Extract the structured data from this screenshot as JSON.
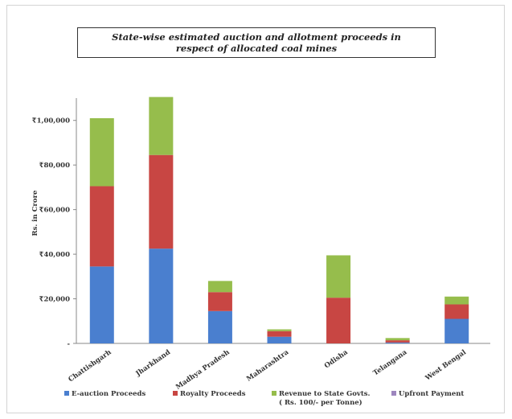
{
  "chart_data": {
    "type": "bar",
    "stacked": true,
    "title_line1": "State-wise estimated auction and allotment proceeds in",
    "title_line2": "respect of allocated coal mines",
    "ylabel": "Rs. in Crore",
    "ylim": [
      0,
      110000
    ],
    "yticks": [
      0,
      20000,
      40000,
      60000,
      80000,
      100000
    ],
    "ytick_labels": [
      "-",
      "₹20,000",
      "₹40,000",
      "₹60,000",
      "₹80,000",
      "₹1,00,000"
    ],
    "categories": [
      "Chattishgarh",
      "Jharkhand",
      "Madhya Pradesh",
      "Maharashtra",
      "Odisha",
      "Telangana",
      "West Bengal"
    ],
    "series": [
      {
        "name": "E-auction Proceeds",
        "color": "#4a7fcf",
        "values": [
          34500,
          42500,
          14500,
          3000,
          0,
          400,
          11000
        ]
      },
      {
        "name": "Royalty Proceeds",
        "color": "#c84643",
        "values": [
          36000,
          42000,
          8500,
          2500,
          20500,
          1000,
          6500
        ]
      },
      {
        "name": "Revenue to State Govts. ( Rs. 100/- per Tonne)",
        "color": "#96bd4c",
        "values": [
          30500,
          26000,
          5000,
          800,
          19000,
          1000,
          3500
        ]
      },
      {
        "name": "Upfront Payment",
        "color": "#9d86be",
        "values": [
          0,
          0,
          0,
          0,
          0,
          0,
          0
        ]
      }
    ],
    "legend_position": "bottom",
    "grid": false
  },
  "legend": {
    "item1": "E-auction Proceeds",
    "item2": "Royalty Proceeds",
    "item3_line1": "Revenue to State Govts.",
    "item3_line2": "( Rs. 100/- per Tonne)",
    "item4": "Upfront Payment"
  }
}
